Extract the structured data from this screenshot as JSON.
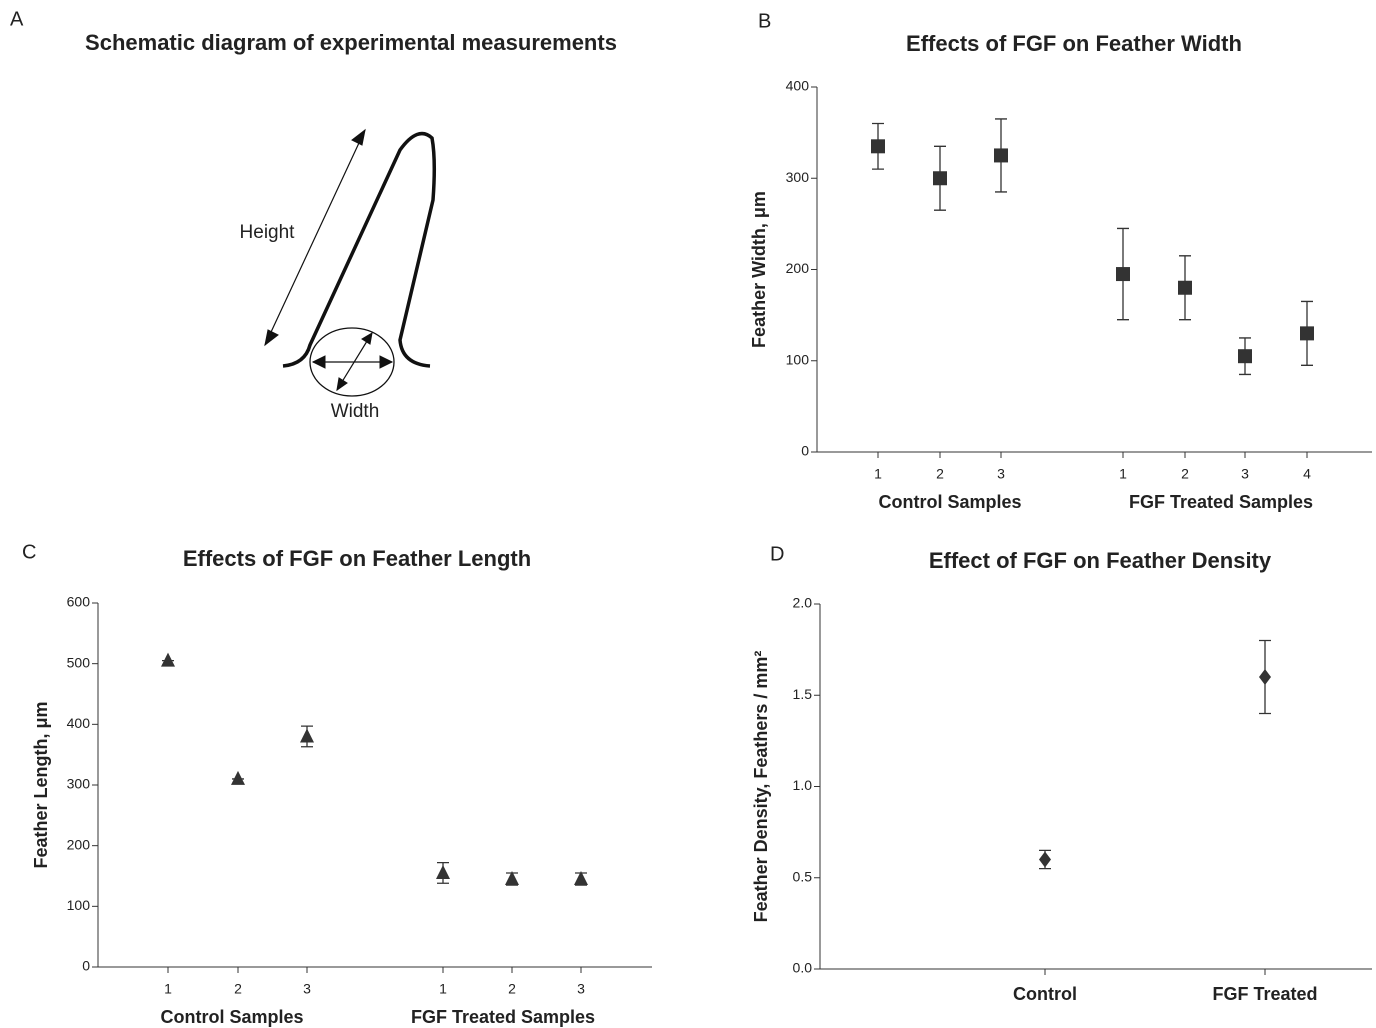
{
  "diagram": {
    "panel_label": "A",
    "title": "Schematic diagram of experimental measurements",
    "labels": [
      "Height",
      "Width"
    ]
  },
  "chart_data": [
    {
      "type": "scatter",
      "panel_label": "B",
      "title": "Effects of FGF on Feather Width",
      "y_label": "Feather Width, μm",
      "marker": "square",
      "color": "#333333",
      "groups": [
        {
          "name": "Control Samples",
          "categories": [
            "1",
            "2",
            "3"
          ],
          "values": [
            335,
            300,
            325
          ],
          "errors": [
            25,
            35,
            40
          ]
        },
        {
          "name": "FGF Treated Samples",
          "categories": [
            "1",
            "2",
            "3",
            "4"
          ],
          "values": [
            195,
            180,
            105,
            130
          ],
          "errors": [
            50,
            35,
            20,
            35
          ]
        }
      ],
      "ylim": [
        0,
        400
      ],
      "yticks": [
        0,
        100,
        200,
        300,
        400
      ]
    },
    {
      "type": "scatter",
      "panel_label": "C",
      "title": "Effects of FGF on Feather Length",
      "y_label": "Feather Length, μm",
      "marker": "triangle",
      "color": "#333333",
      "groups": [
        {
          "name": "Control Samples",
          "categories": [
            "1",
            "2",
            "3"
          ],
          "values": [
            505,
            310,
            380
          ],
          "errors": [
            0,
            0,
            17
          ]
        },
        {
          "name": "FGF Treated Samples",
          "categories": [
            "1",
            "2",
            "3"
          ],
          "values": [
            155,
            145,
            145
          ],
          "errors": [
            17,
            10,
            10
          ]
        }
      ],
      "ylim": [
        0,
        600
      ],
      "yticks": [
        0,
        100,
        200,
        300,
        400,
        500,
        600
      ]
    },
    {
      "type": "scatter",
      "panel_label": "D",
      "title": "Effect of FGF on Feather Density",
      "y_label": "Feather Density, Feathers / mm²",
      "marker": "diamond",
      "color": "#333333",
      "categories": [
        "Control",
        "FGF Treated"
      ],
      "values": [
        0.6,
        1.6
      ],
      "errors": [
        0.05,
        0.2
      ],
      "ylim": [
        0,
        2
      ],
      "yticks": [
        {
          "value": 0,
          "label": "0.0"
        },
        0.5,
        {
          "value": 1,
          "label": "1.0"
        },
        1.5,
        {
          "value": 2,
          "label": "2.0"
        }
      ]
    }
  ]
}
